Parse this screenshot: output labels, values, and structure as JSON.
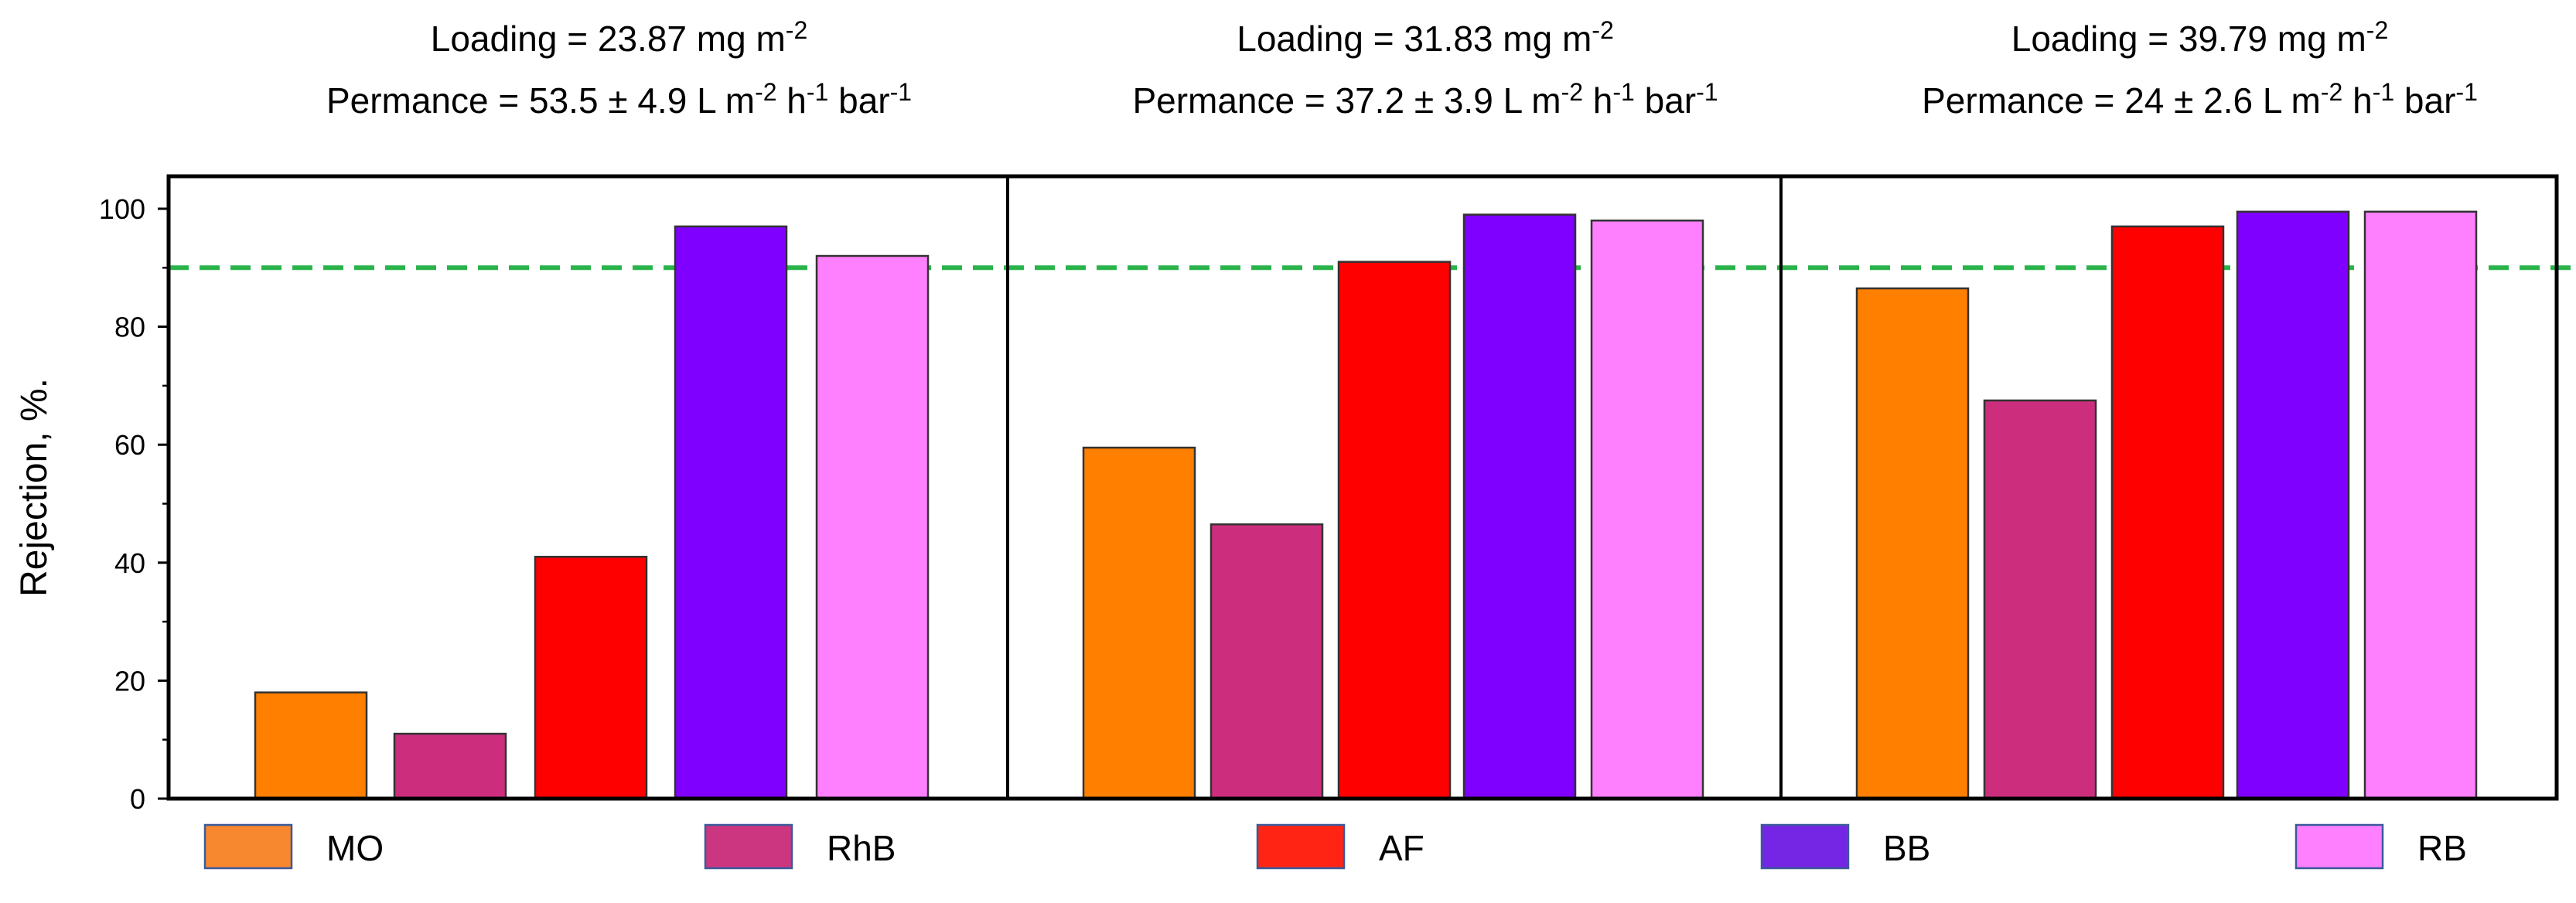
{
  "chart_data": {
    "type": "bar",
    "ylabel": "Rejection, %.",
    "ylim": [
      0,
      105
    ],
    "yticks": [
      0,
      20,
      40,
      60,
      80,
      100
    ],
    "y_minor_step": 10,
    "reference_line": {
      "value": 90,
      "style": "dashed",
      "color": "#2ab34b"
    },
    "categories": [
      "MO",
      "RhB",
      "AF",
      "BB",
      "RB"
    ],
    "colors": {
      "MO": "#ff7f00",
      "RhB": "#cc2e7d",
      "AF": "#ff0000",
      "BB": "#7f00ff",
      "RB": "#ff80ff"
    },
    "legend": {
      "placement": "bottom",
      "items": [
        {
          "label": "MO",
          "color": "#f7882f"
        },
        {
          "label": "RhB",
          "color": "#cc3580"
        },
        {
          "label": "AF",
          "color": "#ff2414"
        },
        {
          "label": "BB",
          "color": "#7525e4"
        },
        {
          "label": "RB",
          "color": "#ff80ff"
        }
      ]
    },
    "panels": [
      {
        "title_line1": {
          "text": "Loading = 23.87 mg m",
          "sup": "-2"
        },
        "title_line2": [
          {
            "t": "Permance = 53.5 ± 4.9 L m"
          },
          {
            "sup": "-2"
          },
          {
            "t": " h"
          },
          {
            "sup": "-1"
          },
          {
            "t": " bar"
          },
          {
            "sup": "-1"
          }
        ],
        "values": [
          18,
          11,
          41,
          97,
          92
        ]
      },
      {
        "title_line1": {
          "text": "Loading = 31.83 mg m",
          "sup": "-2"
        },
        "title_line2": [
          {
            "t": "Permance = 37.2 ± 3.9 L m"
          },
          {
            "sup": "-2"
          },
          {
            "t": " h"
          },
          {
            "sup": "-1"
          },
          {
            "t": " bar"
          },
          {
            "sup": "-1"
          }
        ],
        "values": [
          59.5,
          46.5,
          91,
          99,
          98
        ]
      },
      {
        "title_line1": {
          "text": "Loading = 39.79 mg m",
          "sup": "-2"
        },
        "title_line2": [
          {
            "t": "Permance = 24 ± 2.6 L m"
          },
          {
            "sup": "-2"
          },
          {
            "t": " h"
          },
          {
            "sup": "-1"
          },
          {
            "t": " bar"
          },
          {
            "sup": "-1"
          }
        ],
        "values": [
          86.5,
          67.5,
          97,
          99.5,
          99.5
        ]
      }
    ]
  }
}
